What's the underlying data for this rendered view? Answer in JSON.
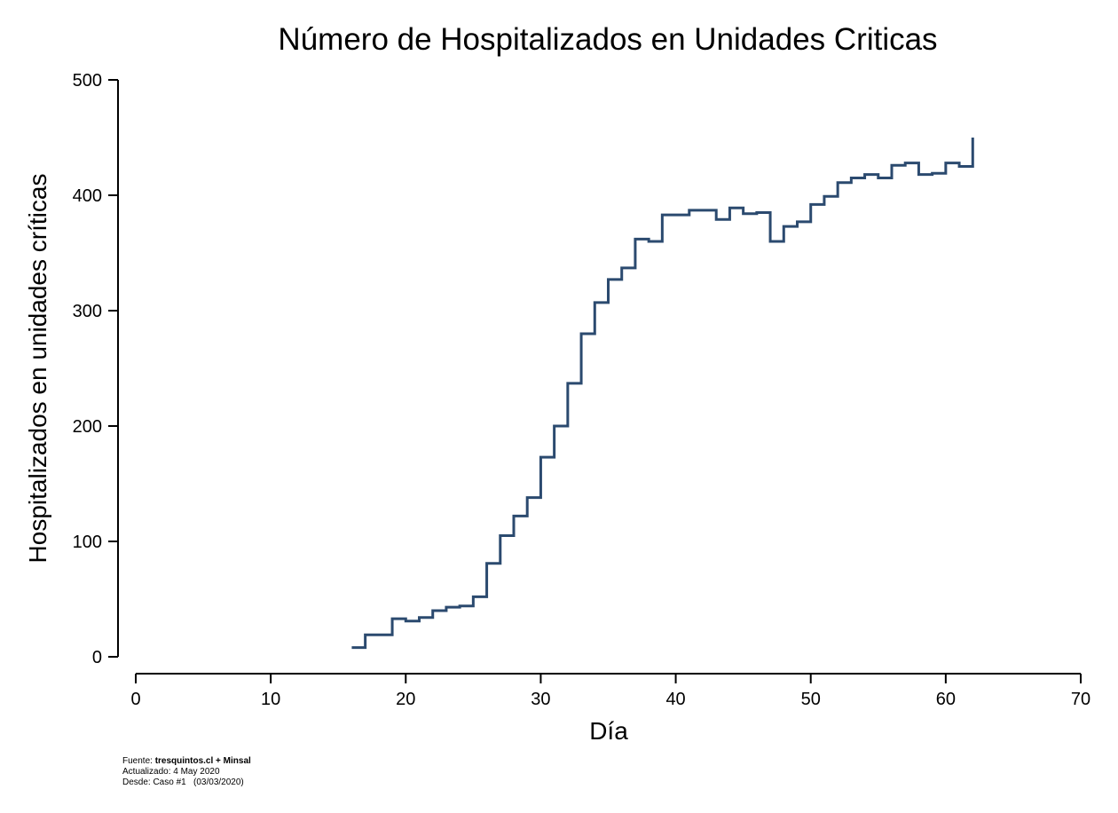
{
  "chart_data": {
    "type": "line",
    "step": true,
    "title": "Número de Hospitalizados en Unidades Criticas",
    "xlabel": "Día",
    "ylabel": "Hospitalizados en unidades críticas",
    "xlim": [
      0,
      70
    ],
    "ylim": [
      0,
      500
    ],
    "xticks": [
      "0",
      "10",
      "20",
      "30",
      "40",
      "50",
      "60",
      "70"
    ],
    "yticks": [
      "0",
      "100",
      "200",
      "300",
      "400",
      "500"
    ],
    "grid": false,
    "line_color": "#2b4a6f",
    "series": [
      {
        "x": [
          16,
          17,
          18,
          19,
          20,
          21,
          22,
          23,
          24,
          25,
          26,
          27,
          28,
          29,
          30,
          31,
          32,
          33,
          34,
          35,
          36,
          37,
          38,
          39,
          40,
          41,
          42,
          43,
          44,
          45,
          46,
          47,
          48,
          49,
          50,
          51,
          52,
          53,
          54,
          55,
          56,
          57,
          58,
          59,
          60,
          61,
          62
        ],
        "y": [
          8,
          19,
          19,
          33,
          31,
          34,
          40,
          43,
          44,
          52,
          81,
          105,
          122,
          138,
          173,
          200,
          237,
          280,
          307,
          327,
          337,
          362,
          360,
          383,
          383,
          387,
          387,
          379,
          389,
          384,
          385,
          360,
          373,
          377,
          392,
          399,
          411,
          415,
          418,
          415,
          426,
          428,
          418,
          419,
          428,
          425,
          450
        ]
      }
    ]
  },
  "footnote": {
    "source_prefix": "Fuente: ",
    "source_bold": "tresquintos.cl + Minsal",
    "updated": "Actualizado: 4 May 2020",
    "since": "Desde: Caso #1   (03/03/2020)"
  }
}
